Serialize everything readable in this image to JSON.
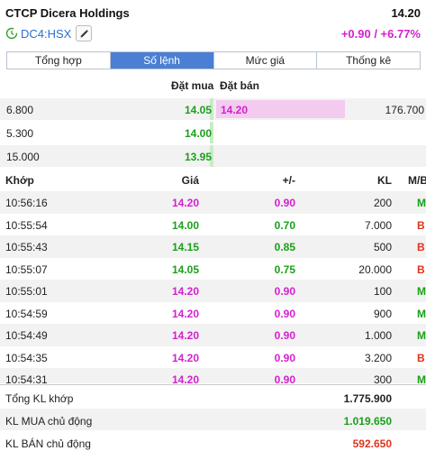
{
  "header": {
    "title": "CTCP Dicera Holdings",
    "price": "14.20",
    "ticker": "DC4:HSX",
    "change": "+0.90 / +6.77%"
  },
  "colors": {
    "up": "#1aa01a",
    "ceiling": "#d51fd0",
    "sell": "#e0331b",
    "tab_active": "#4a7fd4"
  },
  "tabs": [
    {
      "label": "Tổng hợp",
      "active": false
    },
    {
      "label": "Số lệnh",
      "active": true
    },
    {
      "label": "Mức giá",
      "active": false
    },
    {
      "label": "Thống kê",
      "active": false
    }
  ],
  "orderbook": {
    "bid_header": "Đặt mua",
    "ask_header": "Đặt bán",
    "rows": [
      {
        "bid_vol": "6.800",
        "bid": "14.05",
        "ask": "14.20",
        "ask_vol": "176.700"
      },
      {
        "bid_vol": "5.300",
        "bid": "14.00",
        "ask": "",
        "ask_vol": ""
      },
      {
        "bid_vol": "15.000",
        "bid": "13.95",
        "ask": "",
        "ask_vol": ""
      }
    ]
  },
  "trades": {
    "headers": {
      "time": "Khớp",
      "price": "Giá",
      "change": "+/-",
      "volume": "KL",
      "side": "M/B"
    },
    "rows": [
      {
        "time": "10:56:16",
        "price": "14.20",
        "change": "0.90",
        "volume": "200",
        "side": "M",
        "pc": "ceiling",
        "sc": "up"
      },
      {
        "time": "10:55:54",
        "price": "14.00",
        "change": "0.70",
        "volume": "7.000",
        "side": "B",
        "pc": "up",
        "sc": "sell"
      },
      {
        "time": "10:55:43",
        "price": "14.15",
        "change": "0.85",
        "volume": "500",
        "side": "B",
        "pc": "up",
        "sc": "sell"
      },
      {
        "time": "10:55:07",
        "price": "14.05",
        "change": "0.75",
        "volume": "20.000",
        "side": "B",
        "pc": "up",
        "sc": "sell"
      },
      {
        "time": "10:55:01",
        "price": "14.20",
        "change": "0.90",
        "volume": "100",
        "side": "M",
        "pc": "ceiling",
        "sc": "up"
      },
      {
        "time": "10:54:59",
        "price": "14.20",
        "change": "0.90",
        "volume": "900",
        "side": "M",
        "pc": "ceiling",
        "sc": "up"
      },
      {
        "time": "10:54:49",
        "price": "14.20",
        "change": "0.90",
        "volume": "1.000",
        "side": "M",
        "pc": "ceiling",
        "sc": "up"
      },
      {
        "time": "10:54:35",
        "price": "14.20",
        "change": "0.90",
        "volume": "3.200",
        "side": "B",
        "pc": "ceiling",
        "sc": "sell"
      },
      {
        "time": "10:54:31",
        "price": "14.20",
        "change": "0.90",
        "volume": "300",
        "side": "M",
        "pc": "ceiling",
        "sc": "up"
      }
    ]
  },
  "summary": {
    "total_label": "Tổng KL khớp",
    "total_value": "1.775.900",
    "buy_label": "KL MUA chủ động",
    "buy_value": "1.019.650",
    "sell_label": "KL BÁN chủ động",
    "sell_value": "592.650"
  }
}
